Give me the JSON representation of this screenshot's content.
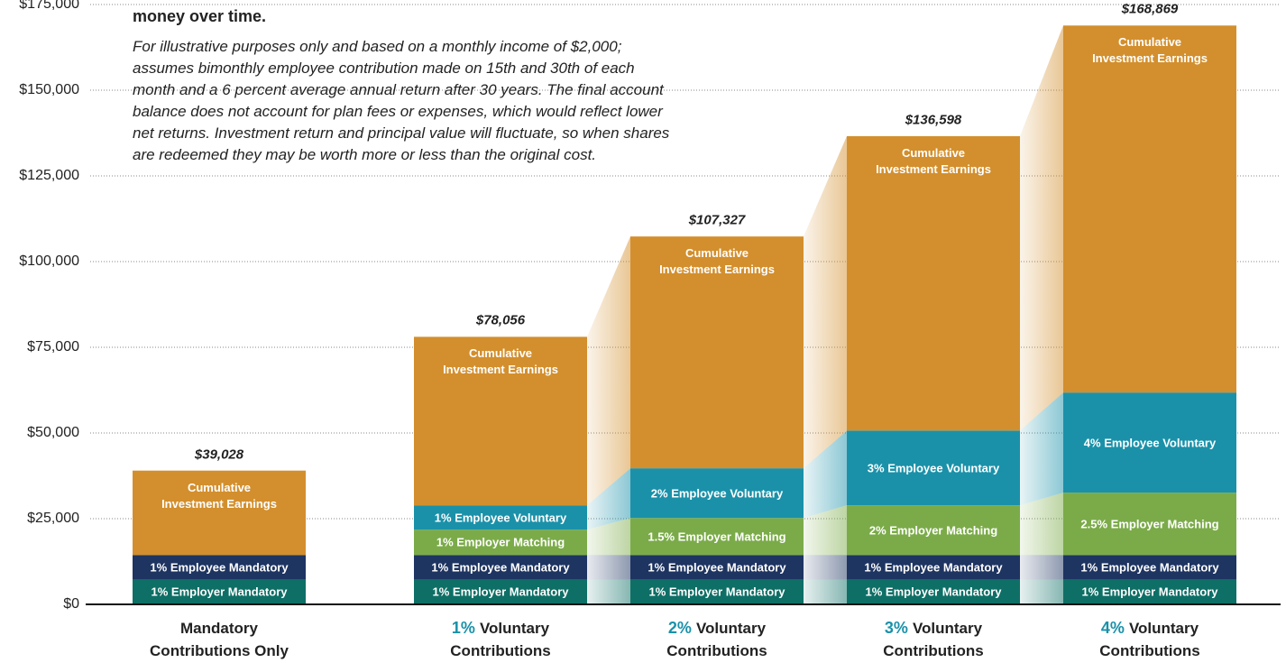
{
  "chart_data": {
    "type": "stacked_bar",
    "title": "money over time.",
    "subtitle_lines": [
      "For illustrative purposes only and based on a monthly income of $2,000;",
      "assumes bimonthly employee contribution made on 15th and 30th of each",
      "month and a 6 percent average annual return after 30 years. The final account",
      "balance does not account for plan fees or expenses, which would reflect lower",
      "net returns. Investment return and principal value will fluctuate, so when shares",
      "are redeemed they may be worth more or less than the original cost."
    ],
    "categories": [
      "Mandatory Contributions Only",
      "Voluntary Contributions",
      "Voluntary Contributions",
      "Voluntary Contributions",
      "Voluntary Contributions"
    ],
    "category_highlights": [
      null,
      "1%",
      "2%",
      "3%",
      "4%"
    ],
    "highlight_color": "#1a91a9",
    "series": [
      {
        "color": "#0e6f66",
        "values": [
          7200,
          7200,
          7200,
          7200,
          7200
        ],
        "labels": [
          "1% Employer Mandatory",
          "1% Employer Mandatory",
          "1% Employer Mandatory",
          "1% Employer Mandatory",
          "1% Employer Mandatory"
        ]
      },
      {
        "color": "#1e3461",
        "values": [
          7200,
          7200,
          7200,
          7200,
          7200
        ],
        "labels": [
          "1% Employee Mandatory",
          "1% Employee Mandatory",
          "1% Employee Mandatory",
          "1% Employee Mandatory",
          "1% Employee Mandatory"
        ]
      },
      {
        "color": "#7bab49",
        "values": [
          null,
          7400,
          10800,
          14500,
          18200
        ],
        "labels": [
          null,
          "1% Employer Matching",
          "1.5% Employer Matching",
          "2% Employer Matching",
          "2.5% Employer Matching"
        ]
      },
      {
        "color": "#1a91a9",
        "values": [
          null,
          7100,
          14500,
          21800,
          29200
        ],
        "labels": [
          null,
          "1% Employee Voluntary",
          "2% Employee Voluntary",
          "3% Employee Voluntary",
          "4% Employee Voluntary"
        ]
      },
      {
        "color": "#d38f2d",
        "values": [
          24628,
          49156,
          67627,
          85898,
          107069
        ],
        "labels": [
          "Cumulative Investment Earnings",
          "Cumulative Investment Earnings",
          "Cumulative Investment Earnings",
          "Cumulative Investment Earnings",
          "Cumulative Investment Earnings"
        ]
      }
    ],
    "totals": [
      39028,
      78056,
      107327,
      136598,
      168869
    ],
    "total_labels": [
      "$39,028",
      "$78,056",
      "$107,327",
      "$136,598",
      "$168,869"
    ],
    "ylim": [
      0,
      175000
    ],
    "yticks": [
      {
        "value": 0,
        "label": "$0"
      },
      {
        "value": 25000,
        "label": "$25,000"
      },
      {
        "value": 50000,
        "label": "$50,000"
      },
      {
        "value": 75000,
        "label": "$75,000"
      },
      {
        "value": 100000,
        "label": "$100,000"
      },
      {
        "value": 125000,
        "label": "$125,000"
      },
      {
        "value": 150000,
        "label": "$150,000"
      },
      {
        "value": 175000,
        "label": "$175,000"
      }
    ],
    "grid": true
  }
}
